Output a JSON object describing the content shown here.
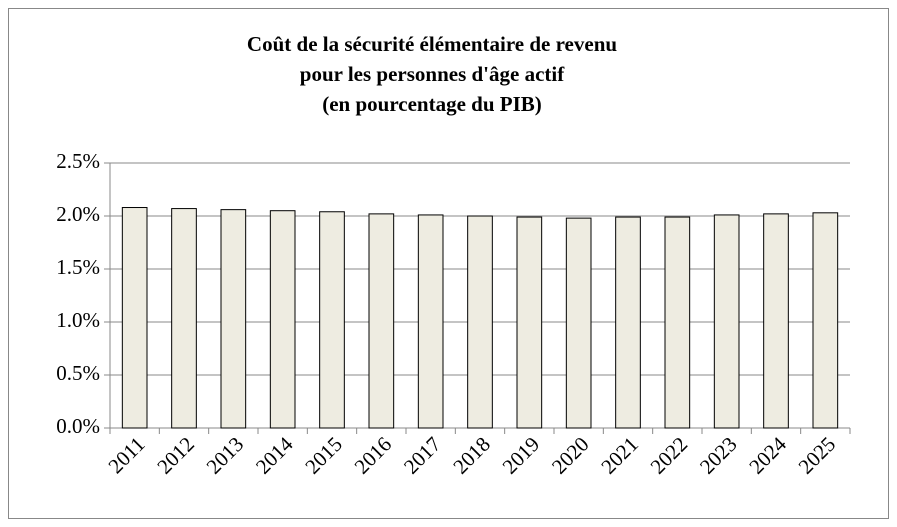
{
  "chart_data": {
    "type": "bar",
    "title": [
      "Coût de la sécurité élémentaire de revenu",
      "pour les personnes d'âge actif",
      "(en pourcentage du PIB)"
    ],
    "categories": [
      "2011",
      "2012",
      "2013",
      "2014",
      "2015",
      "2016",
      "2017",
      "2018",
      "2019",
      "2020",
      "2021",
      "2022",
      "2023",
      "2024",
      "2025"
    ],
    "values": [
      2.08,
      2.07,
      2.06,
      2.05,
      2.04,
      2.02,
      2.01,
      2.0,
      1.99,
      1.98,
      1.99,
      1.99,
      2.01,
      2.02,
      2.03
    ],
    "color": "#eeece1",
    "ylim": [
      0,
      2.5
    ],
    "yticks": [
      {
        "value": 0,
        "label": "0.0%"
      },
      {
        "value": 0.5,
        "label": "0.5%"
      },
      {
        "value": 1,
        "label": "1.0%"
      },
      {
        "value": 1.5,
        "label": "1.5%"
      },
      {
        "value": 2,
        "label": "2.0%"
      },
      {
        "value": 2.5,
        "label": "2.5%"
      }
    ],
    "grid": true
  }
}
